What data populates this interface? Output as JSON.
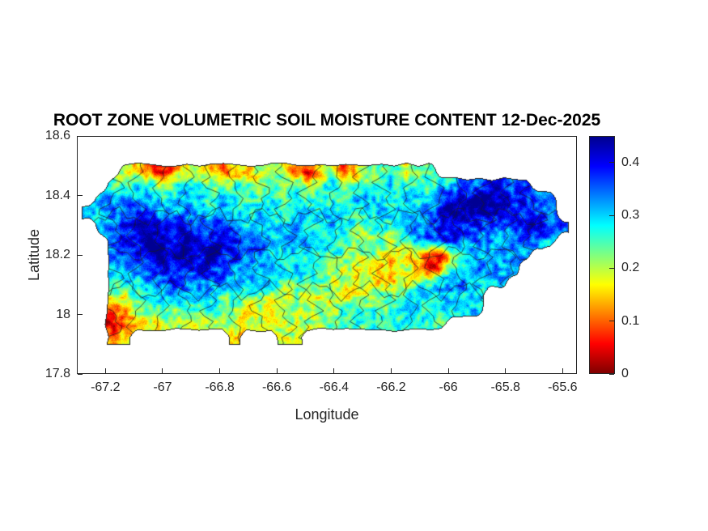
{
  "chart_data": {
    "type": "heatmap",
    "title": "ROOT ZONE VOLUMETRIC SOIL MOISTURE CONTENT 12-Dec-2025",
    "xlabel": "Longitude",
    "ylabel": "Latitude",
    "region": "Puerto Rico with municipal boundaries overlaid",
    "xlim": [
      -67.3,
      -65.55
    ],
    "ylim": [
      17.8,
      18.6
    ],
    "xticks": [
      -67.2,
      -67,
      -66.8,
      -66.6,
      -66.4,
      -66.2,
      -66,
      -65.8,
      -65.6
    ],
    "xtick_labels": [
      "-67.2",
      "-67",
      "-66.8",
      "-66.6",
      "-66.4",
      "-66.2",
      "-66",
      "-65.8",
      "-65.6"
    ],
    "yticks": [
      17.8,
      18,
      18.2,
      18.4,
      18.6
    ],
    "ytick_labels": [
      "17.8",
      "18",
      "18.2",
      "18.4",
      "18.6"
    ],
    "colorbar": {
      "min": 0,
      "max": 0.45,
      "ticks": [
        0,
        0.1,
        0.2,
        0.3,
        0.4
      ],
      "tick_labels": [
        "0",
        "0.1",
        "0.2",
        "0.3",
        "0.4"
      ],
      "colormap": "jet reversed (0 = dark red, 0.45 = dark blue)",
      "stops": [
        {
          "p": 0.0,
          "c": [
            0,
            0,
            143
          ]
        },
        {
          "p": 0.125,
          "c": [
            0,
            0,
            255
          ]
        },
        {
          "p": 0.375,
          "c": [
            0,
            255,
            255
          ]
        },
        {
          "p": 0.625,
          "c": [
            255,
            255,
            0
          ]
        },
        {
          "p": 0.875,
          "c": [
            255,
            0,
            0
          ]
        },
        {
          "p": 1.0,
          "c": [
            128,
            0,
            0
          ]
        }
      ]
    },
    "grid": {
      "description": "Coarse soil-moisture field read off the map. Each char: '.'=ocean, digit d = moisture d*0.05 m3/m3. Row 0 = north (lat0), col 0 = west (lon0).",
      "lon0": -67.2588,
      "dlon": 0.0425,
      "lat0": 18.527,
      "dlat": 0.0464,
      "ocean_char": ".",
      "value_scale": 0.05,
      "rows": [
        "........................................",
        "...43212443233454213423455445...........",
        "..55654565545545554565556655566778877...",
        ".66766666656655655565566656667889988877.",
        "667787777667666656666556666678999988877.",
        ".678898887787666665566555667788887778887",
        "..7889989888877667666554545677877767776.",
        "..77889998988776666555454433214566666...",
        "..6677888887776666555444334312567766....",
        "..566778777766665555443433345677666.....",
        "..4456676665555444444344555667666.......",
        "..2345555555444344444555556666666.......",
        "..1234444444434444445555556555..........",
        "..23........3...44......................"
      ]
    }
  }
}
